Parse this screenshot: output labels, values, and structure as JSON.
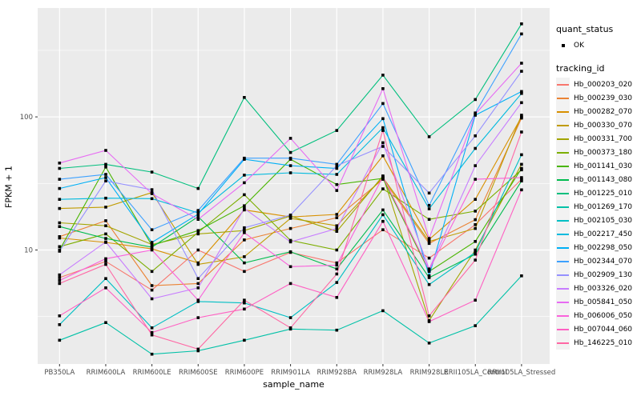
{
  "chart_data": {
    "type": "line",
    "title": "",
    "xlabel": "sample_name",
    "ylabel": "FPKM + 1",
    "y_scale": "log10",
    "y_ticks": [
      10,
      100
    ],
    "y_minor": [
      3.162,
      31.62,
      316.2
    ],
    "ylim": [
      1.35,
      660
    ],
    "grid": "on",
    "legend_position": "right",
    "panel_bg": "#EBEBEB",
    "grid_color": "#FFFFFF",
    "tick_label_color": "#4D4D4D",
    "marker_color": "#000000",
    "legend": {
      "quant_status_title": "quant_status",
      "ok_label": "OK",
      "tracking_title": "tracking_id"
    },
    "categories": [
      "PB350LA",
      "RRIM600LA",
      "RRIM600LE",
      "RRIM600SE",
      "RRIM600PE",
      "RRIM901LA",
      "RRIM928BA",
      "RRIM928LA",
      "RRIM928LE",
      "RRII105LA_Control",
      "RRII105LA_Stressed"
    ],
    "series": [
      {
        "name": "Hb_000203_020",
        "color": "#F8766D",
        "values": [
          6.2,
          8.2,
          5.0,
          10,
          6.9,
          9.6,
          8,
          14.2,
          8.7,
          15.5,
          34
        ]
      },
      {
        "name": "Hb_000239_030",
        "color": "#EB8335",
        "values": [
          12.6,
          16.6,
          5.4,
          5.6,
          11.9,
          14.5,
          17.5,
          34,
          11.2,
          16.9,
          98
        ]
      },
      {
        "name": "Hb_000282_070",
        "color": "#D89000",
        "values": [
          12.3,
          11.4,
          10.2,
          8,
          20,
          17.7,
          18.5,
          51,
          12,
          24,
          100
        ]
      },
      {
        "name": "Hb_000330_070",
        "color": "#C09B00",
        "values": [
          20.5,
          21,
          27,
          7.8,
          8.9,
          17.3,
          15.2,
          35,
          11.6,
          14.5,
          103
        ]
      },
      {
        "name": "Hb_000331_700",
        "color": "#A3A500",
        "values": [
          16,
          15.2,
          11,
          13.2,
          14,
          18,
          13.8,
          36,
          2.95,
          10,
          44
        ]
      },
      {
        "name": "Hb_000373_180",
        "color": "#7CAE00",
        "values": [
          10.6,
          13.2,
          6.9,
          13.6,
          26,
          11.8,
          10,
          28.8,
          17,
          19.6,
          40
        ]
      },
      {
        "name": "Hb_001141_030",
        "color": "#49B500",
        "values": [
          10,
          42,
          10.8,
          14,
          21.5,
          48,
          31,
          34.5,
          6.9,
          11.6,
          41
        ]
      },
      {
        "name": "Hb_001143_080",
        "color": "#00BB4E",
        "values": [
          15,
          12.2,
          10.5,
          17.8,
          8,
          9.7,
          7.2,
          20,
          6.2,
          9.3,
          33
        ]
      },
      {
        "name": "Hb_001225_010",
        "color": "#00BF7D",
        "values": [
          41,
          44,
          38.5,
          29,
          140,
          54,
          79,
          206,
          71,
          135,
          500
        ]
      },
      {
        "name": "Hb_001269_170",
        "color": "#00C1A7",
        "values": [
          2.1,
          2.85,
          1.65,
          1.75,
          2.1,
          2.55,
          2.5,
          3.5,
          2.0,
          2.7,
          6.4
        ]
      },
      {
        "name": "Hb_002105_030",
        "color": "#00BFC4",
        "values": [
          2.75,
          6.1,
          2.6,
          4.1,
          4.0,
          3.1,
          5.7,
          18.4,
          5.5,
          9.6,
          52
        ]
      },
      {
        "name": "Hb_002217_450",
        "color": "#00BADE",
        "values": [
          24,
          24.5,
          24.3,
          19,
          36.5,
          38,
          37,
          83,
          20.4,
          58,
          150
        ]
      },
      {
        "name": "Hb_002298_050",
        "color": "#00B0F6",
        "values": [
          29,
          35,
          11.4,
          18.6,
          48,
          43,
          41,
          97,
          6.4,
          103,
          155
        ]
      },
      {
        "name": "Hb_002344_070",
        "color": "#3DA1FF",
        "values": [
          34,
          37,
          14.2,
          19.8,
          49,
          49,
          44,
          126,
          21.6,
          107,
          420
        ]
      },
      {
        "name": "Hb_002909_130",
        "color": "#9590FF",
        "values": [
          9.8,
          33,
          28.4,
          6.1,
          14.7,
          18.3,
          43,
          60,
          26.8,
          72,
          220
        ]
      },
      {
        "name": "Hb_003326_020",
        "color": "#C77CFF",
        "values": [
          6.5,
          11.5,
          4.3,
          5.2,
          20.5,
          11.5,
          14.5,
          64,
          7.2,
          43,
          128
        ]
      },
      {
        "name": "Hb_005841_050",
        "color": "#E76BF3",
        "values": [
          45,
          56,
          26.5,
          17,
          32,
          69,
          28,
          163,
          12.2,
          105,
          253
        ]
      },
      {
        "name": "Hb_006006_050",
        "color": "#FA62DB",
        "values": [
          5.9,
          8.6,
          10,
          4.2,
          13.5,
          7.5,
          7.7,
          35.5,
          7.1,
          34,
          35
        ]
      },
      {
        "name": "Hb_007044_060",
        "color": "#FF61C3",
        "values": [
          3.2,
          5.2,
          2.4,
          3.1,
          3.6,
          5.6,
          4.4,
          16.4,
          2.9,
          4.2,
          28.3
        ]
      },
      {
        "name": "Hb_146225_010",
        "color": "#FF67A4",
        "values": [
          5.6,
          7.8,
          2.3,
          1.8,
          4.2,
          2.6,
          6.6,
          79,
          3.2,
          8.4,
          77
        ]
      }
    ]
  }
}
